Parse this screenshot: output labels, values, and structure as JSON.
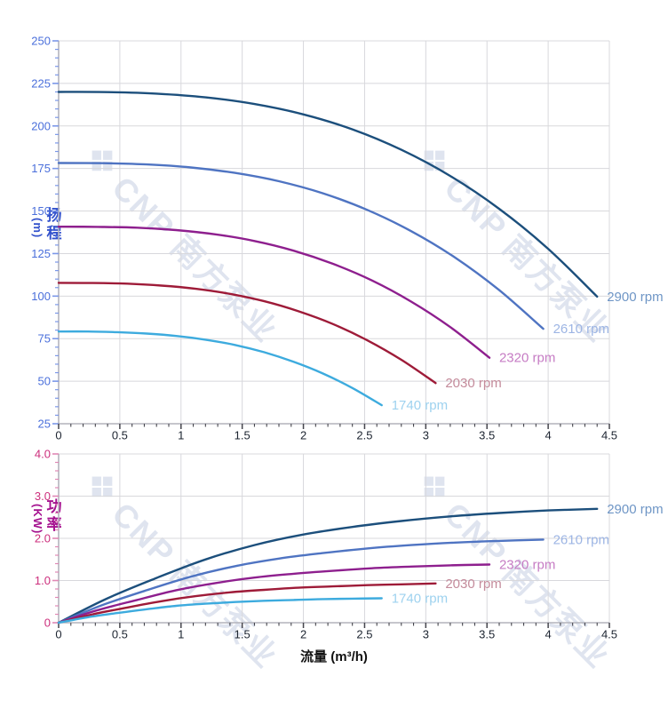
{
  "watermark": {
    "logo": "❖",
    "text": "CNP 南方泵业"
  },
  "chart_data": [
    {
      "id": "head",
      "type": "line",
      "ylabel_cjk": "扬程",
      "ylabel_unit": "(m)",
      "xlim": [
        0,
        4.5
      ],
      "ylim": [
        25,
        250
      ],
      "grid": true,
      "legend_position": "curve-end",
      "x_major_ticks": [
        0,
        0.5,
        1,
        1.5,
        2,
        2.5,
        3,
        3.5,
        4,
        4.5
      ],
      "x_tick_labels": [
        "0",
        "0.5",
        "1",
        "1.5",
        "2",
        "2.5",
        "3",
        "3.5",
        "4",
        "4.5"
      ],
      "x_minor_step": 0.1,
      "y_major_ticks": [
        25,
        50,
        75,
        100,
        125,
        150,
        175,
        200,
        225,
        250
      ],
      "y_tick_labels": [
        "25",
        "50",
        "75",
        "100",
        "125",
        "150",
        "175",
        "200",
        "225",
        "250"
      ],
      "y_minor_step": 5,
      "axis_colors": {
        "y_tick_mark": "#7b97e8",
        "y_tick_text": "#4a6fdb",
        "x_tick_mark": "#44444c",
        "x_tick_text": "#1c2430",
        "grid": "#d8d8dc",
        "axis_line": "#b4b4bc"
      },
      "series": [
        {
          "name": "2900 rpm",
          "rpm": 2900,
          "color": "#1c4f7c",
          "label_color": "#6f96c6",
          "points": [
            [
              0,
              220
            ],
            [
              0.4,
              219.9
            ],
            [
              0.8,
              219
            ],
            [
              1.2,
              216.8
            ],
            [
              1.6,
              212.9
            ],
            [
              2,
              206.8
            ],
            [
              2.4,
              198
            ],
            [
              2.8,
              186
            ],
            [
              3.2,
              170.6
            ],
            [
              3.6,
              151.3
            ],
            [
              4,
              127.8
            ],
            [
              4.4,
              99.7
            ]
          ]
        },
        {
          "name": "2610 rpm",
          "rpm": 2610,
          "color": "#4f74c2",
          "label_color": "#9db5e4",
          "points": [
            [
              0,
              178.2
            ],
            [
              0.36,
              178.1
            ],
            [
              0.72,
              177.4
            ],
            [
              1.08,
              175.6
            ],
            [
              1.44,
              172.4
            ],
            [
              1.8,
              167.5
            ],
            [
              2.16,
              160.4
            ],
            [
              2.52,
              150.7
            ],
            [
              2.88,
              138.2
            ],
            [
              3.24,
              122.6
            ],
            [
              3.6,
              103.5
            ],
            [
              3.96,
              80.8
            ]
          ]
        },
        {
          "name": "2320 rpm",
          "rpm": 2320,
          "color": "#8e1f8e",
          "label_color": "#c67cc4",
          "points": [
            [
              0,
              140.8
            ],
            [
              0.32,
              140.7
            ],
            [
              0.64,
              140.2
            ],
            [
              0.96,
              138.8
            ],
            [
              1.28,
              136.3
            ],
            [
              1.6,
              132.4
            ],
            [
              1.92,
              126.7
            ],
            [
              2.24,
              119
            ],
            [
              2.56,
              109.2
            ],
            [
              2.88,
              96.8
            ],
            [
              3.2,
              81.8
            ],
            [
              3.52,
              63.8
            ]
          ]
        },
        {
          "name": "2030 rpm",
          "rpm": 2030,
          "color": "#9e1b38",
          "label_color": "#c48b9b",
          "points": [
            [
              0,
              107.8
            ],
            [
              0.28,
              107.7
            ],
            [
              0.56,
              107.3
            ],
            [
              0.84,
              106.2
            ],
            [
              1.12,
              104.3
            ],
            [
              1.4,
              101.3
            ],
            [
              1.68,
              97
            ],
            [
              1.96,
              91.1
            ],
            [
              2.24,
              83.6
            ],
            [
              2.52,
              74.1
            ],
            [
              2.8,
              62.6
            ],
            [
              3.08,
              48.9
            ]
          ]
        },
        {
          "name": "1740 rpm",
          "rpm": 1740,
          "color": "#3dabde",
          "label_color": "#9ed2ef",
          "points": [
            [
              0,
              79.2
            ],
            [
              0.24,
              79.2
            ],
            [
              0.48,
              78.8
            ],
            [
              0.72,
              78
            ],
            [
              0.96,
              76.6
            ],
            [
              1.2,
              74.4
            ],
            [
              1.44,
              71.3
            ],
            [
              1.68,
              67
            ],
            [
              1.92,
              61.4
            ],
            [
              2.16,
              54.5
            ],
            [
              2.4,
              46
            ],
            [
              2.64,
              35.9
            ]
          ]
        }
      ]
    },
    {
      "id": "power",
      "type": "line",
      "ylabel_cjk": "功率",
      "ylabel_unit": "(KW)",
      "xlabel": "流量 (m³/h)",
      "xlim": [
        0,
        4.5
      ],
      "ylim": [
        0,
        4
      ],
      "grid": true,
      "legend_position": "curve-end",
      "x_major_ticks": [
        0,
        0.5,
        1,
        1.5,
        2,
        2.5,
        3,
        3.5,
        4,
        4.5
      ],
      "x_tick_labels": [
        "0",
        "0.5",
        "1",
        "1.5",
        "2",
        "2.5",
        "3",
        "3.5",
        "4",
        "4.5"
      ],
      "x_minor_step": 0.1,
      "y_major_ticks": [
        0,
        1,
        2,
        3,
        4
      ],
      "y_tick_labels": [
        "0",
        "1.0",
        "2.0",
        "3.0",
        "4.0"
      ],
      "y_minor_step": 0.2,
      "axis_colors": {
        "y_tick_mark": "#e088b5",
        "y_tick_text": "#cc2e7c",
        "x_tick_mark": "#44444c",
        "x_tick_text": "#1c2430",
        "grid": "#d8d8dc",
        "axis_line": "#b4b4bc"
      },
      "series": [
        {
          "name": "2900 rpm",
          "rpm": 2900,
          "color": "#1c4f7c",
          "label_color": "#6f96c6",
          "points": [
            [
              0,
              0
            ],
            [
              0.4,
              0.58
            ],
            [
              0.8,
              1.06
            ],
            [
              1.2,
              1.5
            ],
            [
              1.6,
              1.84
            ],
            [
              2,
              2.09
            ],
            [
              2.4,
              2.27
            ],
            [
              2.8,
              2.41
            ],
            [
              3.2,
              2.52
            ],
            [
              3.6,
              2.6
            ],
            [
              4,
              2.66
            ],
            [
              4.4,
              2.7
            ]
          ]
        },
        {
          "name": "2610 rpm",
          "rpm": 2610,
          "color": "#4f74c2",
          "label_color": "#9db5e4",
          "points": [
            [
              0,
              0
            ],
            [
              0.36,
              0.42
            ],
            [
              0.72,
              0.77
            ],
            [
              1.08,
              1.09
            ],
            [
              1.44,
              1.34
            ],
            [
              1.8,
              1.52
            ],
            [
              2.16,
              1.65
            ],
            [
              2.52,
              1.76
            ],
            [
              2.88,
              1.84
            ],
            [
              3.24,
              1.9
            ],
            [
              3.6,
              1.94
            ],
            [
              3.96,
              1.97
            ]
          ]
        },
        {
          "name": "2320 rpm",
          "rpm": 2320,
          "color": "#8e1f8e",
          "label_color": "#c67cc4",
          "points": [
            [
              0,
              0
            ],
            [
              0.32,
              0.3
            ],
            [
              0.64,
              0.54
            ],
            [
              0.96,
              0.77
            ],
            [
              1.28,
              0.94
            ],
            [
              1.6,
              1.07
            ],
            [
              1.92,
              1.16
            ],
            [
              2.24,
              1.23
            ],
            [
              2.56,
              1.29
            ],
            [
              2.88,
              1.33
            ],
            [
              3.2,
              1.36
            ],
            [
              3.52,
              1.38
            ]
          ]
        },
        {
          "name": "2030 rpm",
          "rpm": 2030,
          "color": "#9e1b38",
          "label_color": "#c48b9b",
          "points": [
            [
              0,
              0
            ],
            [
              0.28,
              0.2
            ],
            [
              0.56,
              0.36
            ],
            [
              0.84,
              0.51
            ],
            [
              1.12,
              0.63
            ],
            [
              1.4,
              0.72
            ],
            [
              1.68,
              0.78
            ],
            [
              1.96,
              0.83
            ],
            [
              2.24,
              0.86
            ],
            [
              2.52,
              0.89
            ],
            [
              2.8,
              0.91
            ],
            [
              3.08,
              0.93
            ]
          ]
        },
        {
          "name": "1740 rpm",
          "rpm": 1740,
          "color": "#3dabde",
          "label_color": "#9ed2ef",
          "points": [
            [
              0,
              0
            ],
            [
              0.24,
              0.13
            ],
            [
              0.48,
              0.23
            ],
            [
              0.72,
              0.32
            ],
            [
              0.96,
              0.4
            ],
            [
              1.2,
              0.45
            ],
            [
              1.44,
              0.49
            ],
            [
              1.68,
              0.52
            ],
            [
              1.92,
              0.54
            ],
            [
              2.16,
              0.56
            ],
            [
              2.4,
              0.57
            ],
            [
              2.64,
              0.58
            ]
          ]
        }
      ]
    }
  ]
}
